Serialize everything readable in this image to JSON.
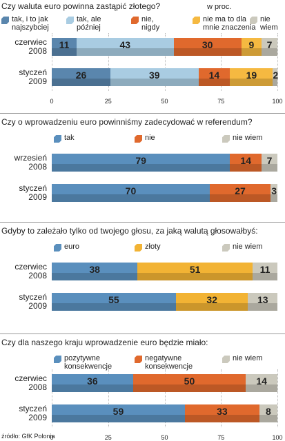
{
  "source": "źródło: GfK Polonia",
  "chart_data": [
    {
      "type": "bar",
      "orientation": "horizontal",
      "stacked": true,
      "title": "Czy waluta euro powinna zastąpić złotego?",
      "annotation": "w proc.",
      "categories": [
        "czerwiec 2008",
        "styczeń 2009"
      ],
      "series": [
        {
          "name": "tak, i to jak najszybciej",
          "color": "#5a86ad",
          "values": [
            11,
            26
          ]
        },
        {
          "name": "tak, ale później",
          "color": "#a9cce2",
          "values": [
            43,
            39
          ]
        },
        {
          "name": "nie, nigdy",
          "color": "#e0692d",
          "values": [
            30,
            14
          ]
        },
        {
          "name": "nie ma to dla mnie znaczenia",
          "color": "#f5b941",
          "values": [
            9,
            19
          ]
        },
        {
          "name": "nie wiem",
          "color": "#cbc9bd",
          "values": [
            7,
            2
          ]
        }
      ],
      "xlim": [
        0,
        100
      ],
      "xticks": [
        0,
        25,
        50,
        75,
        100
      ],
      "grid": true
    },
    {
      "type": "bar",
      "orientation": "horizontal",
      "stacked": true,
      "title": "Czy o wprowadzeniu euro powinniśmy zadecydować w referendum?",
      "categories": [
        "wrzesień 2008",
        "styczeń 2009"
      ],
      "series": [
        {
          "name": "tak",
          "color": "#5a8fbd",
          "values": [
            79,
            70
          ]
        },
        {
          "name": "nie",
          "color": "#e0692d",
          "values": [
            14,
            27
          ]
        },
        {
          "name": "nie wiem",
          "color": "#cbc9bd",
          "values": [
            7,
            3
          ]
        }
      ],
      "xlim": [
        0,
        100
      ]
    },
    {
      "type": "bar",
      "orientation": "horizontal",
      "stacked": true,
      "title": "Gdyby to zależało tylko od twojego głosu, za jaką walutą głosowałbyś:",
      "categories": [
        "czerwiec 2008",
        "styczeń 2009"
      ],
      "series": [
        {
          "name": "euro",
          "color": "#5a8fbd",
          "values": [
            38,
            55
          ]
        },
        {
          "name": "złoty",
          "color": "#f2b334",
          "values": [
            51,
            32
          ]
        },
        {
          "name": "nie wiem",
          "color": "#cbc9bd",
          "values": [
            11,
            13
          ]
        }
      ],
      "xlim": [
        0,
        100
      ]
    },
    {
      "type": "bar",
      "orientation": "horizontal",
      "stacked": true,
      "title": "Czy dla naszego kraju  wprowadzenie euro będzie miało:",
      "categories": [
        "czerwiec 2008",
        "styczeń 2009"
      ],
      "series": [
        {
          "name": "pozytywne konsekwencje",
          "color": "#5a8fbd",
          "values": [
            36,
            59
          ]
        },
        {
          "name": "negatywne konsekwencje",
          "color": "#e0692d",
          "values": [
            50,
            33
          ]
        },
        {
          "name": "nie wiem",
          "color": "#cbc9bd",
          "values": [
            14,
            8
          ]
        }
      ],
      "xlim": [
        0,
        100
      ],
      "xticks": [
        0,
        25,
        50,
        75,
        100
      ],
      "grid": true
    }
  ]
}
